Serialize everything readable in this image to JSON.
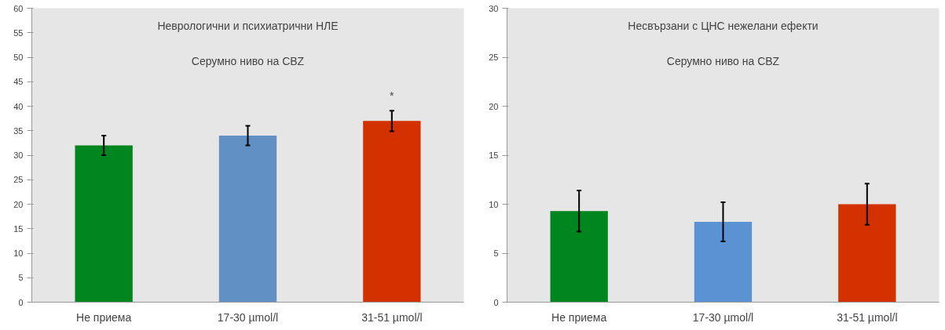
{
  "chart_data": [
    {
      "type": "bar",
      "title": "Неврологични и психиатрични НЛЕ",
      "subtitle": "Серумно ниво на CBZ",
      "categories": [
        "Не приема",
        "17-30 µmol/l",
        "31-51 µmol/l"
      ],
      "values": [
        32,
        34,
        37
      ],
      "colors": [
        "#00861e",
        "#6090c4",
        "#d43100"
      ],
      "errors": [
        2,
        2,
        2.1
      ],
      "ylim": [
        0,
        60
      ],
      "yticks": [
        0,
        5,
        10,
        15,
        20,
        25,
        30,
        35,
        40,
        45,
        50,
        55,
        60
      ],
      "annotations": [
        {
          "text": "*",
          "x": "31-51 µmol/l",
          "y": 37
        }
      ]
    },
    {
      "type": "bar",
      "title": "Несвързани с ЦНС нежелани ефекти",
      "subtitle": "Серумно ниво на CBZ",
      "categories": [
        "Не приема",
        "17-30 µmol/l",
        "31-51 µmol/l"
      ],
      "values": [
        9.3,
        8.2,
        10
      ],
      "colors": [
        "#00861e",
        "#5a92d4",
        "#d43100"
      ],
      "errors": [
        2.1,
        2,
        2.1
      ],
      "ylim": [
        0,
        30
      ],
      "yticks": [
        0,
        5,
        10,
        15,
        20,
        25,
        30
      ]
    }
  ]
}
